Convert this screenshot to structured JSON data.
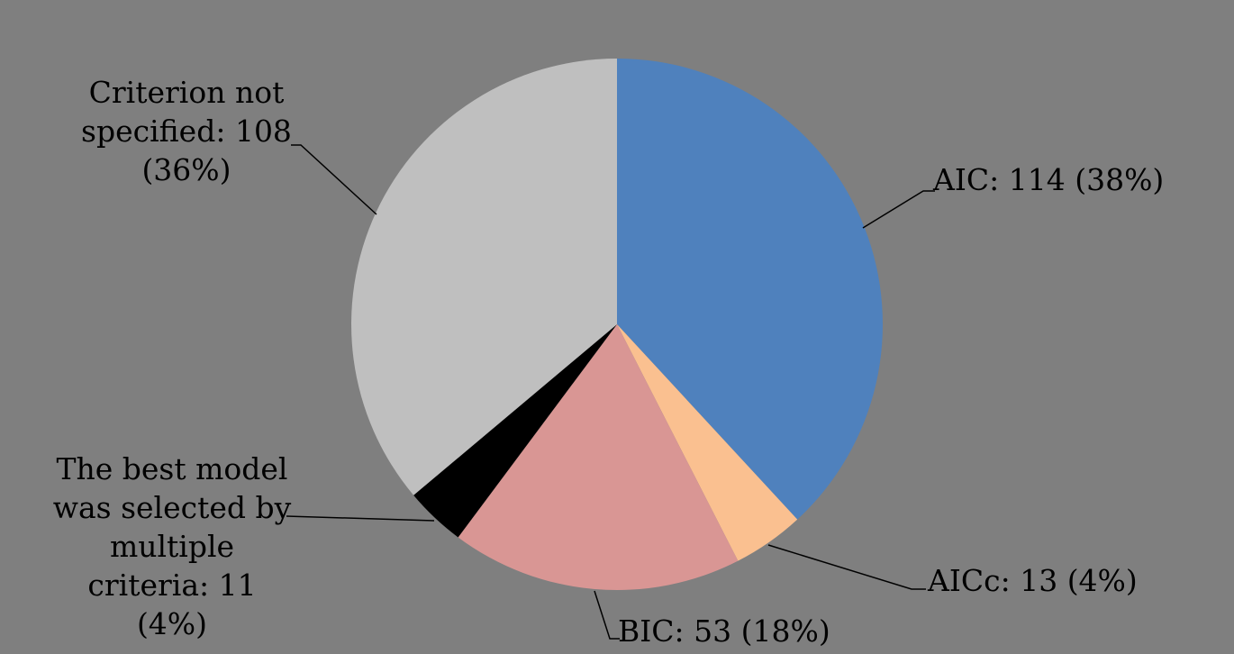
{
  "canvas": {
    "background_color": "#7F7F7F",
    "text_color": "#000000"
  },
  "chart_data": {
    "type": "pie",
    "title": "",
    "total": 299,
    "start_angle_deg": 0,
    "direction": "clockwise",
    "legend": "none",
    "labels_style": "outside callouts with black leader lines",
    "slices": [
      {
        "id": "aic",
        "label": "AIC",
        "value": 114,
        "percent_label": "38%",
        "color": "#4F81BD"
      },
      {
        "id": "aicc",
        "label": "AICc",
        "value": 13,
        "percent_label": "4%",
        "color": "#FAC090"
      },
      {
        "id": "bic",
        "label": "BIC",
        "value": 53,
        "percent_label": "18%",
        "color": "#D99694"
      },
      {
        "id": "multiple",
        "label": "The best model was selected by multiple criteria",
        "value": 11,
        "percent_label": "4%",
        "color": "#000000"
      },
      {
        "id": "criterion",
        "label": "Criterion not specified",
        "value": 108,
        "percent_label": "36%",
        "color": "#BFBFBF"
      }
    ]
  },
  "callouts": {
    "aic": {
      "text": "AIC: 114 (38%)"
    },
    "aicc": {
      "text": "AICc: 13 (4%)"
    },
    "bic": {
      "text": "BIC: 53 (18%)"
    },
    "multiple": {
      "text": "The best model\nwas selected by\nmultiple\ncriteria: 11\n(4%)"
    },
    "criterion": {
      "text": "Criterion not\nspecified: 108\n(36%)"
    }
  }
}
